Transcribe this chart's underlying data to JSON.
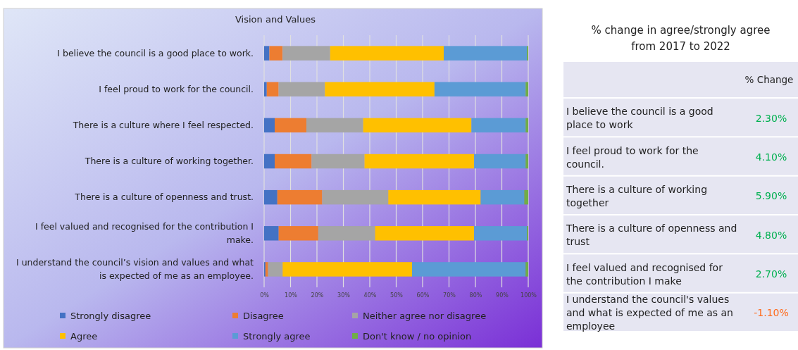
{
  "chart_data": [
    {
      "type": "bar",
      "orientation": "horizontal",
      "stacked": true,
      "title": "Vision and Values",
      "categories": [
        "I believe the council is a good place to work.",
        "I feel proud to work for the council.",
        "There is a culture where I feel respected.",
        "There is a culture of working together.",
        "There is a culture of openness and trust.",
        "I feel valued and recognised for the contribution I make.",
        "I understand the council’s vision and values and what is expected of me as an employee."
      ],
      "series": [
        {
          "name": "Strongly disagree",
          "color": "#4472c4",
          "values": [
            2,
            1,
            4,
            4,
            5,
            5.5,
            0.5
          ]
        },
        {
          "name": "Disagree",
          "color": "#ed7d31",
          "values": [
            5,
            4.5,
            12,
            14,
            17,
            15,
            1
          ]
        },
        {
          "name": "Neither agree nor disagree",
          "color": "#a5a5a5",
          "values": [
            18,
            17.5,
            21.5,
            20,
            25,
            21.5,
            5.5
          ]
        },
        {
          "name": "Agree",
          "color": "#ffc000",
          "values": [
            43,
            41.5,
            41,
            41.5,
            35,
            37.5,
            49
          ]
        },
        {
          "name": "Strongly agree",
          "color": "#5b9bd5",
          "values": [
            31.5,
            34.5,
            20.5,
            19.5,
            16.5,
            20,
            43
          ]
        },
        {
          "name": "Don't know / no opinion",
          "color": "#70ad47",
          "values": [
            0.5,
            1,
            1,
            1,
            1.5,
            0.5,
            1
          ]
        }
      ],
      "xlim": [
        0,
        100
      ],
      "xticks": [
        {
          "value": 0,
          "label": "0%"
        },
        {
          "value": 10,
          "label": "10%"
        },
        {
          "value": 20,
          "label": "20%"
        },
        {
          "value": 30,
          "label": "30%"
        },
        {
          "value": 40,
          "label": "40%"
        },
        {
          "value": 50,
          "label": "50%"
        },
        {
          "value": 60,
          "label": "60%"
        },
        {
          "value": 70,
          "label": "70%"
        },
        {
          "value": 80,
          "label": "80%"
        },
        {
          "value": 90,
          "label": "90%"
        },
        {
          "value": 100,
          "label": "100%"
        }
      ],
      "grid": "x",
      "legend": "bottom"
    },
    {
      "type": "other",
      "title": "% change in agree/strongly agree from 2017 to 2022",
      "annotations": [
        "% Change",
        "I believe the council is a good place to work",
        "2.30%",
        "I feel proud to work for the council.",
        "4.10%",
        "There is a culture of working together",
        "5.90%",
        "There is a culture of openness and trust",
        "4.80%",
        "I feel valued and recognised for the contribution I make",
        "2.70%",
        "I understand the council's values and what is expected of me as an employee",
        "-1.10%"
      ]
    }
  ]
}
